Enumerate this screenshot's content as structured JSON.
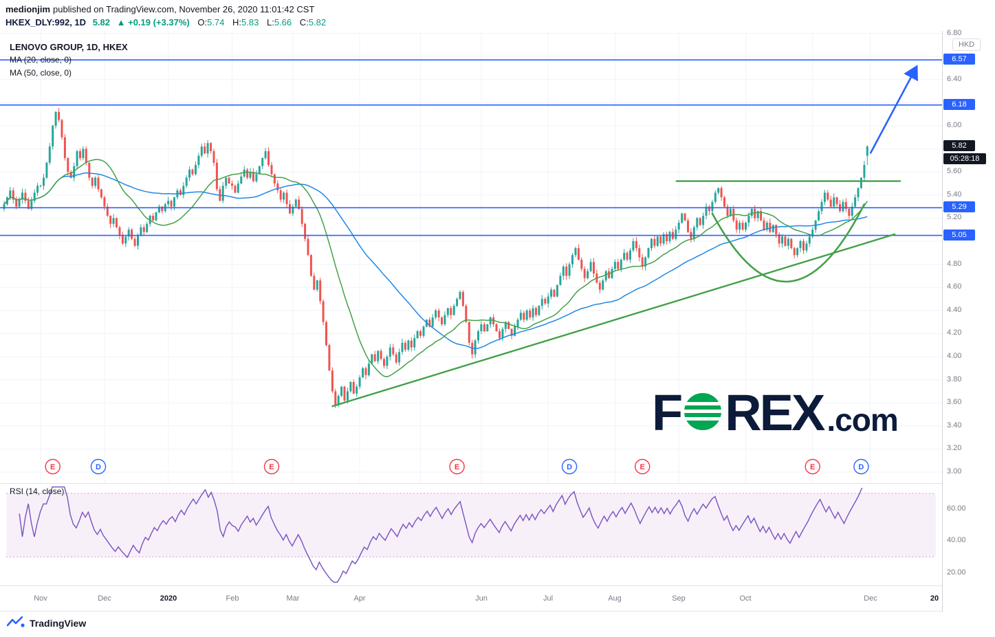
{
  "meta": {
    "publisher": "medionjim",
    "publish_note": "published on TradingView.com, November 26, 2020 11:01:42 CST"
  },
  "header": {
    "symbol": "HKEX_DLY:992, 1D",
    "price": "5.82",
    "change": "▲ +0.19 (+3.37%)",
    "o_key": "O:",
    "o_val": "5.74",
    "h_key": "H:",
    "h_val": "5.83",
    "l_key": "L:",
    "l_val": "5.66",
    "c_key": "C:",
    "c_val": "5.82"
  },
  "legend": {
    "title": "LENOVO GROUP, 1D, HKEX",
    "ma20": "MA (20, close, 0)",
    "ma50": "MA (50, close, 0)"
  },
  "rsi_legend": "RSI (14, close)",
  "axis": {
    "currency_badge": "HKD",
    "current_price": "5.82",
    "countdown": "05:28:18"
  },
  "watermark": {
    "f": "F",
    "rex": "REX",
    "com": ".com"
  },
  "footer": {
    "brand": "TradingView"
  },
  "chart_data": {
    "type": "candlestick",
    "title": "LENOVO GROUP, 1D, HKEX",
    "symbol": "HKEX_DLY:992",
    "interval": "1D",
    "currency": "HKD",
    "last_bar_ohlc": {
      "open": 5.74,
      "high": 5.83,
      "low": 5.66,
      "close": 5.82
    },
    "change": {
      "abs": 0.19,
      "pct": 3.37
    },
    "price_axis": {
      "visible_ticks": [
        6.8,
        6.4,
        6.0,
        5.6,
        5.4,
        5.2,
        4.8,
        4.6,
        4.4,
        4.2,
        4.0,
        3.8,
        3.6,
        3.4,
        3.2,
        3.0
      ],
      "range": [
        2.92,
        6.82
      ]
    },
    "time_axis": [
      {
        "label": "Nov",
        "bar": 12
      },
      {
        "label": "Dec",
        "bar": 33
      },
      {
        "label": "2020",
        "bar": 54,
        "bold": true
      },
      {
        "label": "Feb",
        "bar": 75
      },
      {
        "label": "Mar",
        "bar": 95
      },
      {
        "label": "Apr",
        "bar": 117
      },
      {
        "label": "Jun",
        "bar": 157
      },
      {
        "label": "Jul",
        "bar": 179
      },
      {
        "label": "Aug",
        "bar": 201
      },
      {
        "label": "Sep",
        "bar": 222
      },
      {
        "label": "Oct",
        "bar": 244
      },
      {
        "label": "Dec",
        "bar": 285
      },
      {
        "label": "20",
        "bar": 306,
        "bold": true
      }
    ],
    "month_grid_bars": [
      12,
      33,
      54,
      75,
      95,
      117,
      137,
      157,
      179,
      201,
      222,
      244,
      266,
      285
    ],
    "closes": [
      5.32,
      5.38,
      5.44,
      5.36,
      5.3,
      5.36,
      5.42,
      5.35,
      5.28,
      5.35,
      5.42,
      5.48,
      5.48,
      5.55,
      5.68,
      5.82,
      6.0,
      6.12,
      6.05,
      5.9,
      5.72,
      5.6,
      5.55,
      5.65,
      5.78,
      5.72,
      5.8,
      5.68,
      5.55,
      5.48,
      5.55,
      5.45,
      5.38,
      5.3,
      5.22,
      5.15,
      5.2,
      5.12,
      5.05,
      4.98,
      5.04,
      5.1,
      5.02,
      4.96,
      5.05,
      5.12,
      5.08,
      5.15,
      5.22,
      5.18,
      5.25,
      5.3,
      5.26,
      5.32,
      5.35,
      5.3,
      5.38,
      5.44,
      5.4,
      5.48,
      5.55,
      5.62,
      5.58,
      5.66,
      5.74,
      5.82,
      5.76,
      5.85,
      5.78,
      5.68,
      5.45,
      5.35,
      5.48,
      5.55,
      5.5,
      5.48,
      5.42,
      5.5,
      5.56,
      5.62,
      5.55,
      5.6,
      5.52,
      5.58,
      5.65,
      5.72,
      5.78,
      5.66,
      5.58,
      5.5,
      5.44,
      5.36,
      5.42,
      5.32,
      5.24,
      5.3,
      5.36,
      5.28,
      5.15,
      5.02,
      4.88,
      4.7,
      4.58,
      4.66,
      4.48,
      4.3,
      4.1,
      3.88,
      3.7,
      3.58,
      3.66,
      3.74,
      3.62,
      3.7,
      3.78,
      3.68,
      3.74,
      3.82,
      3.9,
      3.84,
      3.94,
      4.02,
      3.96,
      4.05,
      3.98,
      3.92,
      4.0,
      4.08,
      4.02,
      3.95,
      4.04,
      4.12,
      4.06,
      4.14,
      4.08,
      4.16,
      4.22,
      4.18,
      4.26,
      4.32,
      4.26,
      4.34,
      4.4,
      4.34,
      4.28,
      4.36,
      4.42,
      4.36,
      4.44,
      4.5,
      4.56,
      4.44,
      4.3,
      4.12,
      4.02,
      4.14,
      4.22,
      4.28,
      4.22,
      4.28,
      4.34,
      4.28,
      4.22,
      4.16,
      4.24,
      4.3,
      4.24,
      4.18,
      4.26,
      4.32,
      4.38,
      4.32,
      4.4,
      4.34,
      4.42,
      4.36,
      4.44,
      4.5,
      4.46,
      4.52,
      4.58,
      4.52,
      4.62,
      4.7,
      4.78,
      4.7,
      4.8,
      4.88,
      4.94,
      4.84,
      4.76,
      4.68,
      4.74,
      4.82,
      4.72,
      4.64,
      4.58,
      4.66,
      4.74,
      4.68,
      4.76,
      4.82,
      4.76,
      4.84,
      4.9,
      4.84,
      4.92,
      5.0,
      4.94,
      4.86,
      4.78,
      4.86,
      4.94,
      5.02,
      4.96,
      5.04,
      4.98,
      5.06,
      5.0,
      5.08,
      5.02,
      5.1,
      5.16,
      5.24,
      5.18,
      5.08,
      5.02,
      5.12,
      5.2,
      5.14,
      5.22,
      5.3,
      5.26,
      5.34,
      5.42,
      5.46,
      5.38,
      5.3,
      5.22,
      5.28,
      5.18,
      5.1,
      5.16,
      5.1,
      5.16,
      5.22,
      5.28,
      5.2,
      5.26,
      5.18,
      5.1,
      5.16,
      5.08,
      5.14,
      5.06,
      4.98,
      5.04,
      4.96,
      5.02,
      4.94,
      4.88,
      4.94,
      5.0,
      4.92,
      4.98,
      5.04,
      5.1,
      5.18,
      5.26,
      5.34,
      5.42,
      5.36,
      5.3,
      5.38,
      5.32,
      5.26,
      5.34,
      5.28,
      5.22,
      5.3,
      5.38,
      5.46,
      5.55,
      5.66,
      5.82
    ],
    "overlays": [
      {
        "name": "MA (20, close, 0)",
        "color": "#43a047"
      },
      {
        "name": "MA (50, close, 0)",
        "color": "#1e88e5"
      }
    ],
    "annotations": {
      "levels": [
        {
          "price": 6.57,
          "label": "6.57"
        },
        {
          "price": 6.18,
          "label": "6.18"
        },
        {
          "price": 5.29,
          "label": "5.29"
        },
        {
          "price": 5.05,
          "label": "5.05"
        }
      ],
      "resistance": {
        "price": 5.52,
        "bar_start": 221,
        "bar_end": 295
      },
      "trendline": {
        "bar_start": 108,
        "price_start": 3.57,
        "bar_end": 293,
        "price_end": 5.06
      },
      "cup": {
        "bar_start": 233,
        "price_start": 5.24,
        "bar_ctrl": 258,
        "price_ctrl": 4.02,
        "bar_end": 283,
        "price_end": 5.32
      },
      "arrow": {
        "bar_start": 285,
        "price_start": 5.76,
        "bar_end": 300,
        "price_end": 6.5
      }
    },
    "markers": [
      {
        "type": "E",
        "bar": 16
      },
      {
        "type": "D",
        "bar": 31
      },
      {
        "type": "E",
        "bar": 88
      },
      {
        "type": "E",
        "bar": 149
      },
      {
        "type": "D",
        "bar": 186
      },
      {
        "type": "E",
        "bar": 210
      },
      {
        "type": "E",
        "bar": 266
      },
      {
        "type": "D",
        "bar": 282
      }
    ],
    "rsi": {
      "period": 14,
      "band": [
        30,
        70
      ],
      "ticks": [
        60,
        40,
        20
      ],
      "range": [
        12,
        76
      ]
    },
    "colors": {
      "up": "#26a69a",
      "down": "#ef5350",
      "ma20": "#43a047",
      "ma50": "#1e88e5",
      "annotation_blue": "#2962ff",
      "annotation_green": "#43a047",
      "rsi_line": "#7e57c2",
      "rsi_band": "rgba(156,39,176,0.07)",
      "rsi_band_edge": "rgba(171,71,188,0.55)",
      "grid": "#f0f3fa",
      "axis_text": "#787b86"
    }
  }
}
